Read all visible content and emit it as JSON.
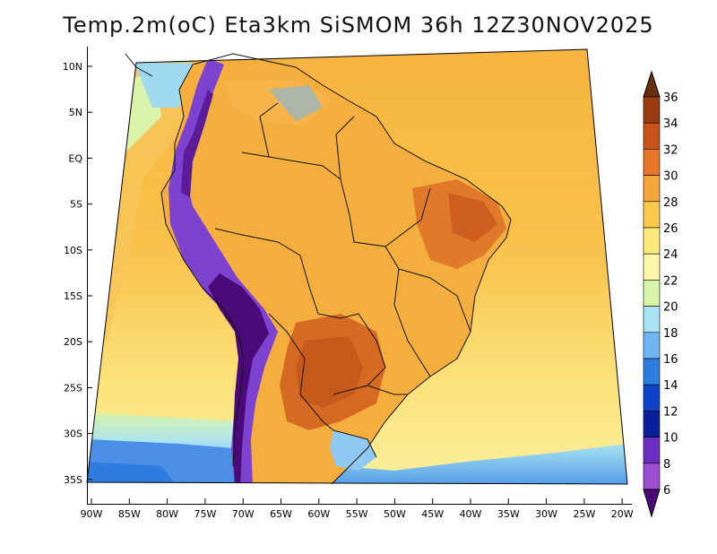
{
  "title": "Temp.2m(oC) Eta3km SiSMOM 36h 12Z30NOV2025",
  "lat_labels": [
    "10N",
    "5N",
    "EQ",
    "5S",
    "10S",
    "15S",
    "20S",
    "25S",
    "30S",
    "35S"
  ],
  "lon_labels": [
    "90W",
    "85W",
    "80W",
    "75W",
    "70W",
    "65W",
    "60W",
    "55W",
    "50W",
    "45W",
    "40W",
    "35W",
    "30W",
    "25W",
    "20W"
  ],
  "colorbar": {
    "labels": [
      "36",
      "34",
      "32",
      "30",
      "28",
      "26",
      "24",
      "22",
      "20",
      "18",
      "16",
      "14",
      "12",
      "10",
      "8",
      "6"
    ],
    "colors_top_to_bottom": [
      "#6b2d0f",
      "#9a3a10",
      "#c9521a",
      "#e8752a",
      "#f6a53c",
      "#f8c94b",
      "#fbe97a",
      "#fbf6a8",
      "#d9f3a8",
      "#a9e3f2",
      "#6fb6f2",
      "#2e7ce0",
      "#0c43c8",
      "#0a1f9a",
      "#6a2dbf",
      "#9b4fd0",
      "#4a0a78"
    ]
  },
  "map": {
    "ocean_warm": "#f7c04a",
    "ocean_cool": "#fbe87c",
    "land_hot": "#f2a33a",
    "land_very_hot": "#d8641f",
    "andes": "#6a2dbf"
  }
}
